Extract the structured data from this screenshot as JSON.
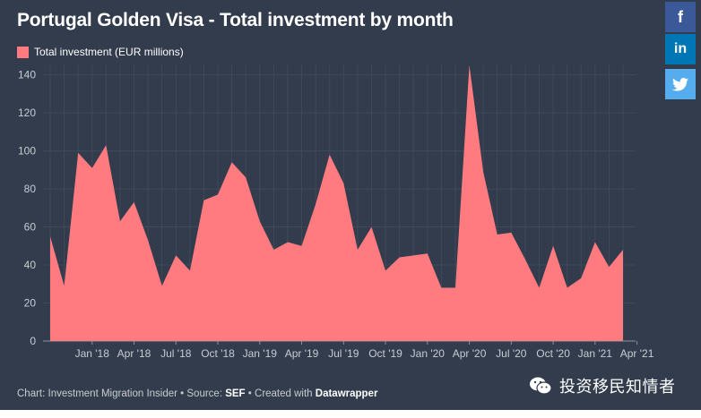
{
  "chart_data": {
    "type": "area",
    "title": "Portugal Golden Visa - Total investment by month",
    "legend": [
      {
        "label": "Total investment (EUR millions)",
        "color": "#ff7b7f"
      }
    ],
    "legend_position": "top-left",
    "grid": true,
    "ylim": [
      0,
      145
    ],
    "yticks": [
      0,
      20,
      40,
      60,
      80,
      100,
      120,
      140
    ],
    "x_tick_labels": [
      "Jan '18",
      "Apr '18",
      "Jul '18",
      "Oct '18",
      "Jan '19",
      "Apr '19",
      "Jul '19",
      "Oct '19",
      "Jan '20",
      "Apr '20",
      "Jul '20",
      "Oct '20",
      "Jan '21",
      "Apr '21"
    ],
    "series": [
      {
        "name": "Total investment (EUR millions)",
        "color": "#ff7b7f",
        "points": [
          {
            "x": "2017-10",
            "y": 55
          },
          {
            "x": "2017-11",
            "y": 29
          },
          {
            "x": "2017-12",
            "y": 99
          },
          {
            "x": "2018-01",
            "y": 91
          },
          {
            "x": "2018-02",
            "y": 103
          },
          {
            "x": "2018-03",
            "y": 63
          },
          {
            "x": "2018-04",
            "y": 73
          },
          {
            "x": "2018-05",
            "y": 53
          },
          {
            "x": "2018-06",
            "y": 29
          },
          {
            "x": "2018-07",
            "y": 45
          },
          {
            "x": "2018-08",
            "y": 37
          },
          {
            "x": "2018-09",
            "y": 74
          },
          {
            "x": "2018-10",
            "y": 77
          },
          {
            "x": "2018-11",
            "y": 94
          },
          {
            "x": "2018-12",
            "y": 86
          },
          {
            "x": "2019-01",
            "y": 63
          },
          {
            "x": "2019-02",
            "y": 48
          },
          {
            "x": "2019-03",
            "y": 52
          },
          {
            "x": "2019-04",
            "y": 50
          },
          {
            "x": "2019-05",
            "y": 72
          },
          {
            "x": "2019-06",
            "y": 98
          },
          {
            "x": "2019-07",
            "y": 83
          },
          {
            "x": "2019-08",
            "y": 48
          },
          {
            "x": "2019-09",
            "y": 60
          },
          {
            "x": "2019-10",
            "y": 37
          },
          {
            "x": "2019-11",
            "y": 44
          },
          {
            "x": "2019-12",
            "y": 45
          },
          {
            "x": "2020-01",
            "y": 46
          },
          {
            "x": "2020-02",
            "y": 28
          },
          {
            "x": "2020-03",
            "y": 28
          },
          {
            "x": "2020-04",
            "y": 145
          },
          {
            "x": "2020-05",
            "y": 89
          },
          {
            "x": "2020-06",
            "y": 56
          },
          {
            "x": "2020-07",
            "y": 57
          },
          {
            "x": "2020-08",
            "y": 43
          },
          {
            "x": "2020-09",
            "y": 28
          },
          {
            "x": "2020-10",
            "y": 50
          },
          {
            "x": "2020-11",
            "y": 28
          },
          {
            "x": "2020-12",
            "y": 33
          },
          {
            "x": "2021-01",
            "y": 52
          },
          {
            "x": "2021-02",
            "y": 39
          },
          {
            "x": "2021-03",
            "y": 48
          }
        ]
      }
    ]
  },
  "footer": {
    "prefix": "Chart: Investment Migration Insider • Source: ",
    "source": "SEF",
    "middle": " • Created with ",
    "tool": "Datawrapper"
  },
  "social": {
    "facebook": "f",
    "linkedin": "in",
    "twitter_icon": "twitter-bird-icon"
  },
  "watermark": {
    "text": "投资移民知情者",
    "icon": "wechat-icon"
  },
  "colors": {
    "background": "#323c4c",
    "area": "#ff7b7f",
    "grid": "#3f4959",
    "axis_text": "#c7ccd4"
  }
}
